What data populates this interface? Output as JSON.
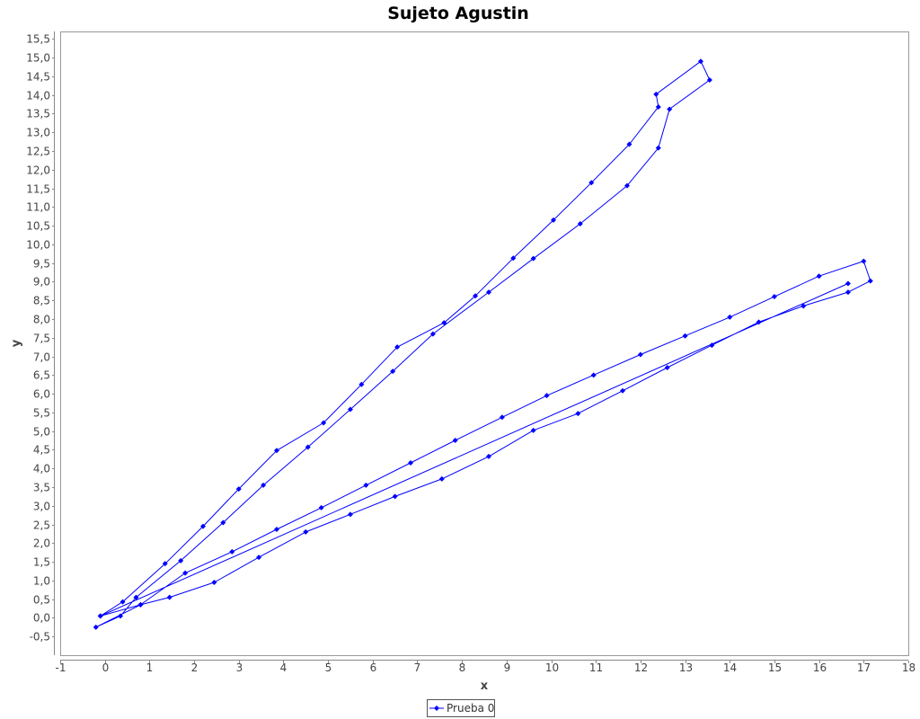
{
  "chart_data": {
    "type": "line",
    "title": "Sujeto Agustin",
    "xlabel": "x",
    "ylabel": "y",
    "xlim": [
      -1,
      18
    ],
    "ylim": [
      -1,
      15.7
    ],
    "x_ticks": [
      "-1",
      "0",
      "1",
      "2",
      "3",
      "4",
      "5",
      "6",
      "7",
      "8",
      "9",
      "10",
      "11",
      "12",
      "13",
      "14",
      "15",
      "16",
      "17",
      "18"
    ],
    "y_ticks": [
      "-0,5",
      "0,0",
      "0,5",
      "1,0",
      "1,5",
      "2,0",
      "2,5",
      "3,0",
      "3,5",
      "4,0",
      "4,5",
      "5,0",
      "5,5",
      "6,0",
      "6,5",
      "7,0",
      "7,5",
      "8,0",
      "8,5",
      "9,0",
      "9,5",
      "10,0",
      "10,5",
      "11,0",
      "11,5",
      "12,0",
      "12,5",
      "13,0",
      "13,5",
      "14,0",
      "14,5",
      "15,0",
      "15,5"
    ],
    "grid": false,
    "legend": {
      "position": "bottom-center"
    },
    "series": [
      {
        "name": "Prueba 0",
        "color": "#0000ff",
        "points": [
          [
            -0.1,
            0.05
          ],
          [
            0.8,
            0.35
          ],
          [
            1.45,
            0.55
          ],
          [
            2.45,
            0.95
          ],
          [
            3.45,
            1.62
          ],
          [
            4.5,
            2.3
          ],
          [
            5.5,
            2.77
          ],
          [
            6.5,
            3.25
          ],
          [
            7.55,
            3.72
          ],
          [
            8.6,
            4.32
          ],
          [
            9.6,
            5.02
          ],
          [
            10.6,
            5.47
          ],
          [
            11.6,
            6.08
          ],
          [
            12.6,
            6.7
          ],
          [
            13.6,
            7.3
          ],
          [
            14.65,
            7.92
          ],
          [
            15.65,
            8.35
          ],
          [
            16.65,
            8.72
          ],
          [
            17.15,
            9.02
          ],
          [
            17.0,
            9.55
          ],
          [
            16.0,
            9.15
          ],
          [
            15.0,
            8.6
          ],
          [
            14.0,
            8.05
          ],
          [
            13.0,
            7.55
          ],
          [
            12.0,
            7.05
          ],
          [
            10.95,
            6.5
          ],
          [
            9.9,
            5.95
          ],
          [
            8.9,
            5.37
          ],
          [
            7.85,
            4.75
          ],
          [
            6.85,
            4.15
          ],
          [
            5.85,
            3.55
          ],
          [
            4.85,
            2.95
          ],
          [
            3.85,
            2.37
          ],
          [
            2.85,
            1.77
          ],
          [
            1.8,
            1.2
          ],
          [
            0.8,
            0.35
          ],
          [
            -0.2,
            -0.25
          ],
          [
            0.35,
            0.05
          ],
          [
            0.7,
            0.55
          ],
          [
            1.7,
            1.53
          ],
          [
            2.65,
            2.55
          ],
          [
            3.55,
            3.55
          ],
          [
            4.55,
            4.57
          ],
          [
            5.5,
            5.58
          ],
          [
            6.45,
            6.6
          ],
          [
            7.35,
            7.6
          ],
          [
            8.6,
            8.72
          ],
          [
            9.6,
            9.62
          ],
          [
            10.65,
            10.55
          ],
          [
            11.7,
            11.57
          ],
          [
            12.4,
            12.58
          ],
          [
            12.65,
            13.62
          ],
          [
            13.55,
            14.4
          ],
          [
            13.35,
            14.9
          ],
          [
            12.35,
            14.02
          ],
          [
            12.4,
            13.68
          ],
          [
            11.75,
            12.68
          ],
          [
            10.9,
            11.65
          ],
          [
            10.05,
            10.65
          ],
          [
            9.15,
            9.63
          ],
          [
            8.3,
            8.62
          ],
          [
            7.6,
            7.9
          ],
          [
            6.55,
            7.25
          ],
          [
            5.75,
            6.25
          ],
          [
            4.9,
            5.22
          ],
          [
            3.85,
            4.48
          ],
          [
            3.0,
            3.45
          ],
          [
            2.2,
            2.45
          ],
          [
            1.35,
            1.45
          ],
          [
            0.4,
            0.43
          ],
          [
            -0.1,
            0.05
          ],
          [
            16.65,
            8.95
          ]
        ]
      }
    ]
  }
}
